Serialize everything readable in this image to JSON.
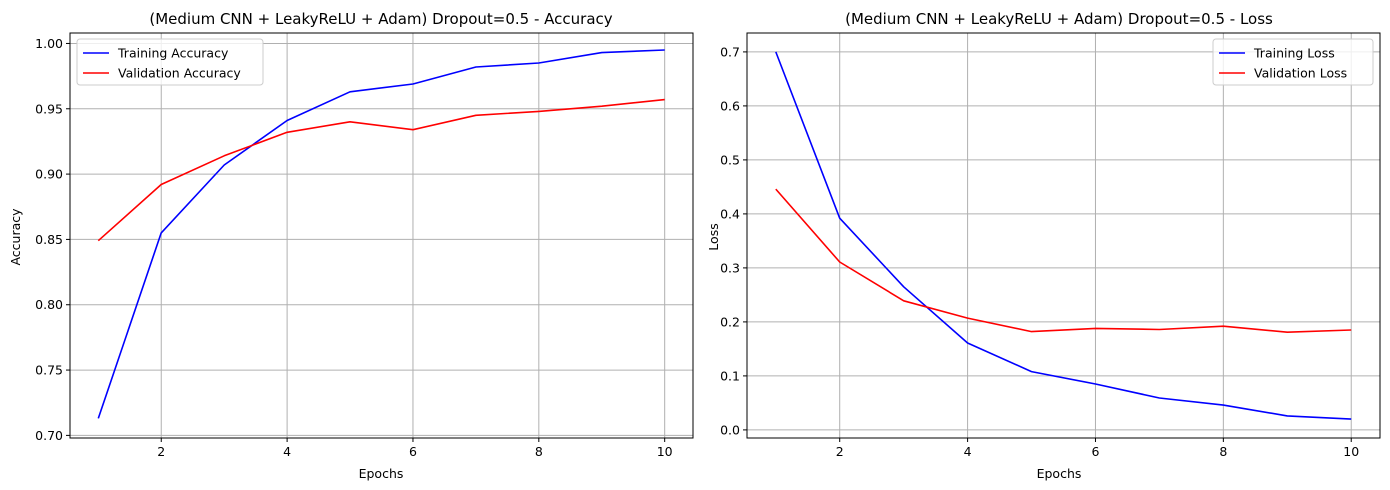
{
  "chart_data": [
    {
      "type": "line",
      "title": "(Medium CNN + LeakyReLU + Adam) Dropout=0.5 - Accuracy",
      "xlabel": "Epochs",
      "ylabel": "Accuracy",
      "x": [
        1,
        2,
        3,
        4,
        5,
        6,
        7,
        8,
        9,
        10
      ],
      "xlim": [
        0.55,
        10.45
      ],
      "ylim": [
        0.698,
        1.008
      ],
      "xticks": [
        2,
        4,
        6,
        8,
        10
      ],
      "xtick_labels": [
        "2",
        "4",
        "6",
        "8",
        "10"
      ],
      "yticks": [
        0.7,
        0.75,
        0.8,
        0.85,
        0.9,
        0.95,
        1.0
      ],
      "ytick_labels": [
        "0.70",
        "0.75",
        "0.80",
        "0.85",
        "0.90",
        "0.95",
        "1.00"
      ],
      "grid": true,
      "legend_position": "upper-left",
      "series": [
        {
          "name": "Training Accuracy",
          "color": "#0000ff",
          "values": [
            0.713,
            0.855,
            0.907,
            0.941,
            0.963,
            0.969,
            0.982,
            0.985,
            0.993,
            0.995
          ]
        },
        {
          "name": "Validation Accuracy",
          "color": "#ff0000",
          "values": [
            0.849,
            0.892,
            0.914,
            0.932,
            0.94,
            0.934,
            0.945,
            0.948,
            0.952,
            0.957
          ]
        }
      ]
    },
    {
      "type": "line",
      "title": "(Medium CNN + LeakyReLU + Adam) Dropout=0.5 - Loss",
      "xlabel": "Epochs",
      "ylabel": "Loss",
      "x": [
        1,
        2,
        3,
        4,
        5,
        6,
        7,
        8,
        9,
        10
      ],
      "xlim": [
        0.55,
        10.45
      ],
      "ylim": [
        -0.015,
        0.735
      ],
      "xticks": [
        2,
        4,
        6,
        8,
        10
      ],
      "xtick_labels": [
        "2",
        "4",
        "6",
        "8",
        "10"
      ],
      "yticks": [
        0.0,
        0.1,
        0.2,
        0.3,
        0.4,
        0.5,
        0.6,
        0.7
      ],
      "ytick_labels": [
        "0.0",
        "0.1",
        "0.2",
        "0.3",
        "0.4",
        "0.5",
        "0.6",
        "0.7"
      ],
      "grid": true,
      "legend_position": "upper-right",
      "series": [
        {
          "name": "Training Loss",
          "color": "#0000ff",
          "values": [
            0.7,
            0.392,
            0.265,
            0.161,
            0.108,
            0.085,
            0.059,
            0.046,
            0.026,
            0.02
          ]
        },
        {
          "name": "Validation Loss",
          "color": "#ff0000",
          "values": [
            0.446,
            0.311,
            0.239,
            0.207,
            0.182,
            0.188,
            0.186,
            0.192,
            0.181,
            0.185
          ]
        }
      ]
    }
  ]
}
